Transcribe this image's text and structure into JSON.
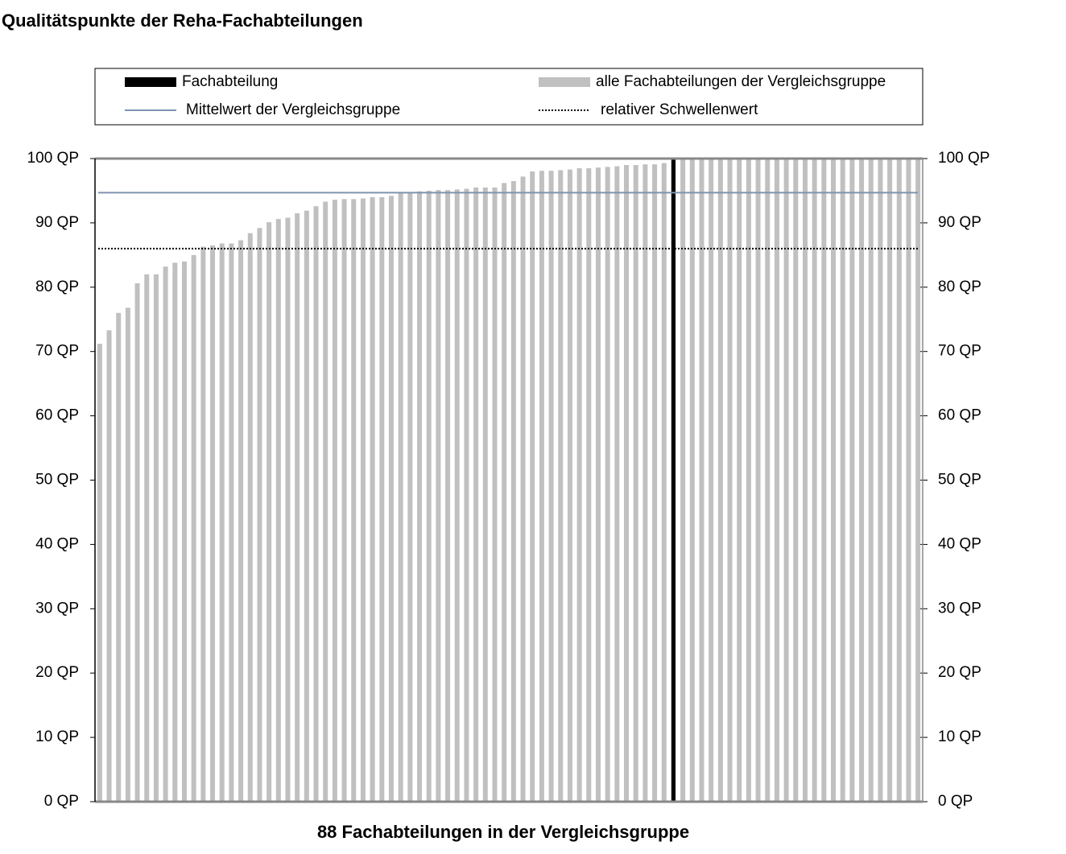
{
  "chart_data": {
    "type": "bar",
    "title": "Qualitätspunkte der Reha-Fachabteilungen",
    "x_label": "88 Fachabteilungen in der Vergleichsgruppe",
    "series": [
      {
        "name": "alle Fachabteilungen der Vergleichsgruppe",
        "color": "#c0c0c0",
        "values": [
          71.2,
          73.3,
          76,
          76.8,
          80.6,
          82,
          82,
          83.2,
          83.8,
          84,
          85,
          86.3,
          86.5,
          86.8,
          86.8,
          87.3,
          88.4,
          89.2,
          90.1,
          90.6,
          90.8,
          91.5,
          91.9,
          92.6,
          93.3,
          93.6,
          93.7,
          93.7,
          93.8,
          94,
          94,
          94.2,
          94.8,
          94.8,
          94.9,
          95,
          95.1,
          95.1,
          95.2,
          95.3,
          95.5,
          95.5,
          95.5,
          96.2,
          96.5,
          97.2,
          98,
          98.1,
          98.1,
          98.2,
          98.3,
          98.5,
          98.5,
          98.6,
          98.7,
          98.8,
          99,
          99,
          99.1,
          99.1,
          99.3,
          100,
          100,
          100,
          100,
          100,
          100,
          100,
          100,
          100,
          100,
          100,
          100,
          100,
          100,
          100,
          100,
          100,
          100,
          100,
          100,
          100,
          100,
          100,
          100,
          100,
          100,
          100
        ]
      },
      {
        "name": "Fachabteilung",
        "color": "#000000",
        "values": [
          null,
          null,
          null,
          null,
          null,
          null,
          null,
          null,
          null,
          null,
          null,
          null,
          null,
          null,
          null,
          null,
          null,
          null,
          null,
          null,
          null,
          null,
          null,
          null,
          null,
          null,
          null,
          null,
          null,
          null,
          null,
          null,
          null,
          null,
          null,
          null,
          null,
          null,
          null,
          null,
          null,
          null,
          null,
          null,
          null,
          null,
          null,
          null,
          null,
          null,
          null,
          null,
          null,
          null,
          null,
          null,
          null,
          null,
          null,
          null,
          null,
          100,
          null,
          null,
          null,
          null,
          null,
          null,
          null,
          null,
          null,
          null,
          null,
          null,
          null,
          null,
          null,
          null,
          null,
          null,
          null,
          null,
          null,
          null,
          null,
          null,
          null,
          null
        ]
      }
    ],
    "reference_lines": [
      {
        "name": "Mittelwert der Vergleichsgruppe",
        "color": "#7f93b0",
        "style": "solid",
        "value": 94.7
      },
      {
        "name": "relativer Schwellenwert",
        "color": "#000000",
        "style": "dotted",
        "value": 86
      }
    ],
    "ylim": [
      0,
      100
    ],
    "yticks": [
      {
        "value": 0,
        "label": "0 QP"
      },
      {
        "value": 10,
        "label": "10 QP"
      },
      {
        "value": 20,
        "label": "20 QP"
      },
      {
        "value": 30,
        "label": "30 QP"
      },
      {
        "value": 40,
        "label": "40 QP"
      },
      {
        "value": 50,
        "label": "50 QP"
      },
      {
        "value": 60,
        "label": "60 QP"
      },
      {
        "value": 70,
        "label": "70 QP"
      },
      {
        "value": 80,
        "label": "80 QP"
      },
      {
        "value": 90,
        "label": "90 QP"
      },
      {
        "value": 100,
        "label": "100 QP"
      }
    ],
    "y2lim": [
      0,
      100
    ],
    "y2ticks": [
      {
        "value": 0,
        "label": "0 QP"
      },
      {
        "value": 10,
        "label": "10 QP"
      },
      {
        "value": 20,
        "label": "20 QP"
      },
      {
        "value": 30,
        "label": "30 QP"
      },
      {
        "value": 40,
        "label": "40 QP"
      },
      {
        "value": 50,
        "label": "50 QP"
      },
      {
        "value": 60,
        "label": "60 QP"
      },
      {
        "value": 70,
        "label": "70 QP"
      },
      {
        "value": 80,
        "label": "80 QP"
      },
      {
        "value": 90,
        "label": "90 QP"
      },
      {
        "value": 100,
        "label": "100 QP"
      }
    ]
  }
}
